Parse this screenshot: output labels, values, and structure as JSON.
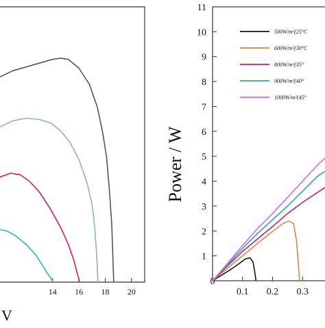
{
  "chart_data": [
    {
      "type": "line",
      "title": "",
      "xlabel": "V",
      "ylabel": "",
      "xlim": [
        10,
        21
      ],
      "ylim": [
        0,
        11
      ],
      "xticks": [
        14,
        16,
        18,
        20
      ],
      "grid": false,
      "series": [
        {
          "color": "#555555",
          "x": [
            10,
            11,
            12,
            13,
            14,
            14.6,
            15.2,
            16,
            16.8,
            17.4,
            17.8,
            18.1,
            18.3,
            18.5,
            18.65
          ],
          "y": [
            8.2,
            8.45,
            8.6,
            8.75,
            8.9,
            8.95,
            8.9,
            8.55,
            7.9,
            7.0,
            6.0,
            5.0,
            3.8,
            2.3,
            0.0
          ]
        },
        {
          "color": "#8fb0c8",
          "x": [
            10,
            11,
            12,
            13,
            13.9,
            14.6,
            15.3,
            16,
            16.6,
            17.0,
            17.2,
            17.35,
            17.45
          ],
          "y": [
            6.2,
            6.45,
            6.55,
            6.5,
            6.35,
            6.05,
            5.6,
            4.9,
            4.0,
            3.1,
            2.2,
            1.1,
            0.0
          ]
        },
        {
          "color": "#cc1a6e",
          "x": [
            10,
            10.8,
            11.5,
            12.2,
            13,
            13.8,
            14.6,
            15.2,
            15.6,
            15.85,
            16.05
          ],
          "y": [
            4.2,
            4.35,
            4.3,
            4.05,
            3.6,
            2.95,
            2.2,
            1.5,
            0.9,
            0.4,
            0.0
          ]
        },
        {
          "color": "#33b0c4",
          "x": [
            10,
            10.5,
            11.2,
            12,
            12.7,
            13.2,
            13.6,
            13.9,
            14.05
          ],
          "y": [
            2.1,
            2.05,
            1.85,
            1.5,
            1.1,
            0.7,
            0.35,
            0.12,
            0.0
          ]
        }
      ]
    },
    {
      "type": "line",
      "title": "",
      "xlabel": "",
      "ylabel": "Power / W",
      "xlim": [
        0,
        0.4
      ],
      "ylim": [
        0,
        11
      ],
      "xticks": [
        0.1,
        0.2,
        0.3
      ],
      "yticks": [
        1,
        2,
        3,
        4,
        5,
        6,
        7,
        8,
        9,
        10,
        11
      ],
      "grid": false,
      "legend_position": "top-right",
      "legend_entries": [
        "500W/m²(25°C",
        "600W/m²(30°C",
        "800W/m²(35°",
        "900W/m²(40°",
        "1000W/m²(45°"
      ],
      "series": [
        {
          "color": "#111111",
          "x": [
            0,
            0.03,
            0.06,
            0.09,
            0.11,
            0.125,
            0.135,
            0.14,
            0.145
          ],
          "y": [
            0,
            0.22,
            0.45,
            0.7,
            0.88,
            0.92,
            0.75,
            0.4,
            0.0
          ]
        },
        {
          "color": "#d08a40",
          "x": [
            0,
            0.05,
            0.1,
            0.15,
            0.2,
            0.235,
            0.255,
            0.27,
            0.28,
            0.285,
            0.29
          ],
          "y": [
            0,
            0.5,
            1.0,
            1.5,
            1.98,
            2.3,
            2.4,
            2.3,
            1.6,
            0.8,
            0.0
          ]
        },
        {
          "color": "#cc1a6e",
          "x": [
            0,
            0.05,
            0.1,
            0.15,
            0.2,
            0.25,
            0.3,
            0.35,
            0.4
          ],
          "y": [
            0,
            0.6,
            1.18,
            1.68,
            2.18,
            2.7,
            3.15,
            3.55,
            3.95
          ]
        },
        {
          "color": "#2aa7a7",
          "x": [
            0,
            0.05,
            0.1,
            0.15,
            0.2,
            0.25,
            0.3,
            0.35,
            0.4
          ],
          "y": [
            0,
            0.65,
            1.3,
            1.9,
            2.45,
            3.0,
            3.6,
            4.2,
            4.6
          ]
        },
        {
          "color": "#dd66e0",
          "x": [
            0,
            0.05,
            0.1,
            0.15,
            0.2,
            0.25,
            0.3,
            0.35,
            0.4
          ],
          "y": [
            0,
            0.7,
            1.42,
            2.1,
            2.7,
            3.35,
            4.0,
            4.65,
            5.2
          ]
        }
      ]
    }
  ]
}
